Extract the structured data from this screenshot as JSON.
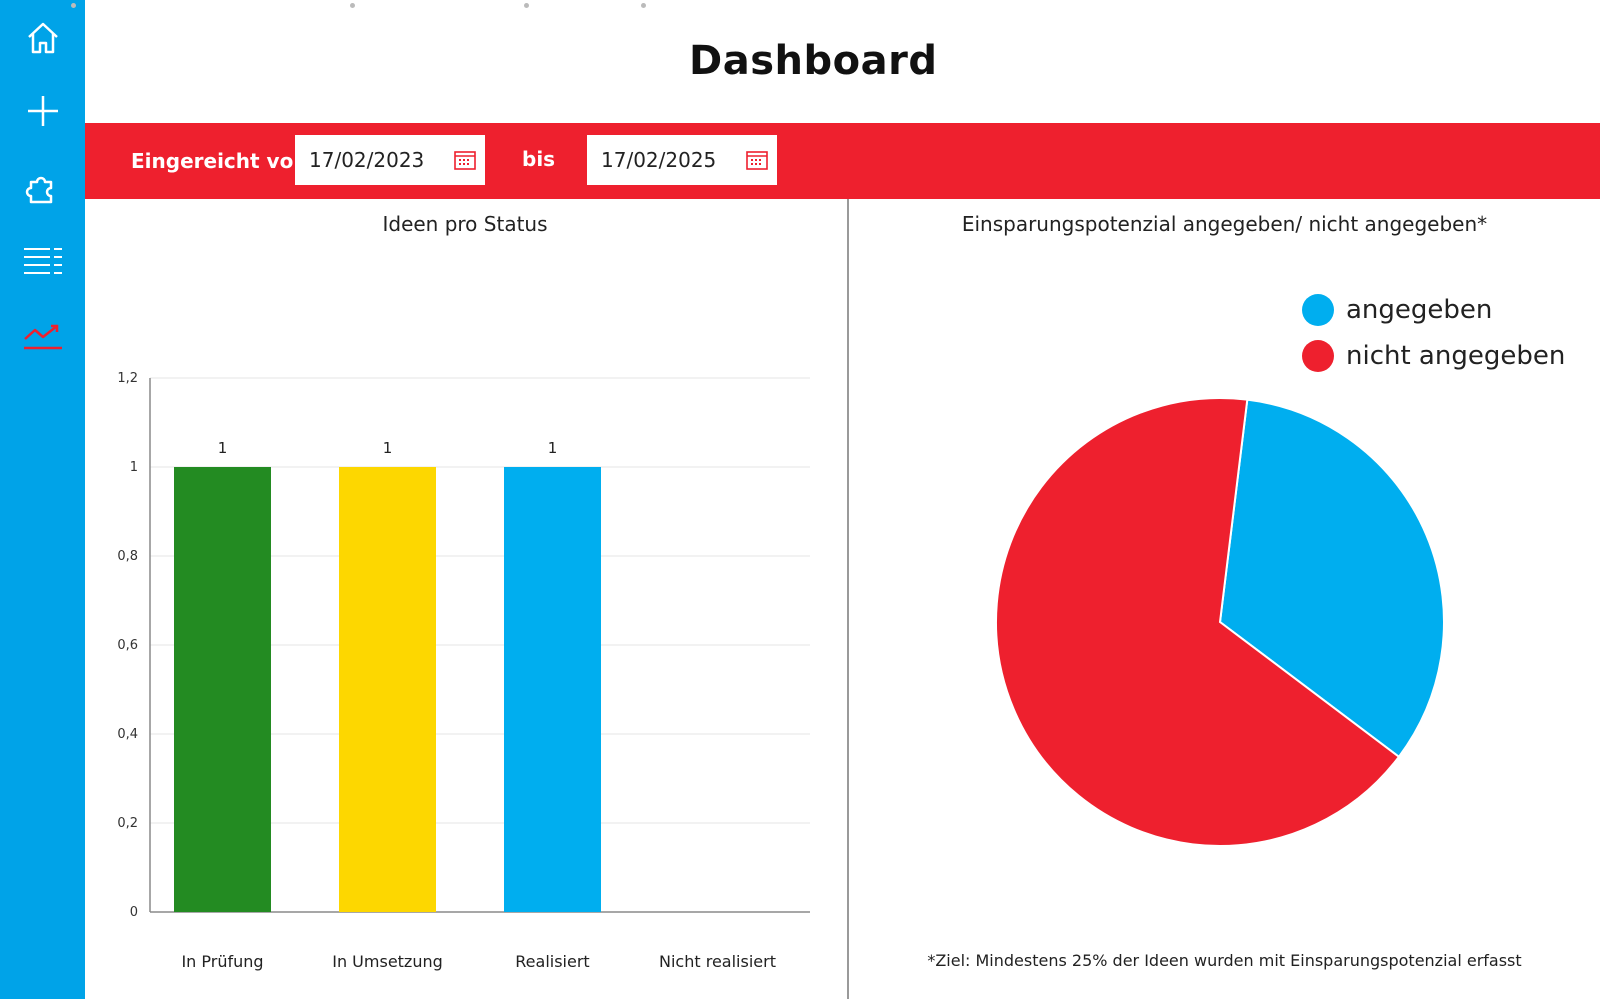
{
  "sidebar": {
    "items": [
      {
        "icon": "home-icon"
      },
      {
        "icon": "plus-icon"
      },
      {
        "icon": "puzzle-icon"
      },
      {
        "icon": "list-icon"
      },
      {
        "icon": "trend-chart-icon",
        "active": true
      }
    ],
    "active_icon_color": "#ee202e"
  },
  "header": {
    "title": "Dashboard"
  },
  "filters": {
    "from_label": "Eingereicht von",
    "from_value": "17/02/2023",
    "to_label": "bis",
    "to_value": "17/02/2025"
  },
  "colors": {
    "sidebar": "#00a3e8",
    "filter_bar": "#ee202e"
  },
  "left_panel": {
    "title": "Ideen pro Status"
  },
  "right_panel": {
    "title": "Einsparungspotenzial angegeben/ nicht angegeben*",
    "footnote": "*Ziel: Mindestens 25% der Ideen wurden mit Einsparungspotenzial erfasst"
  },
  "chart_data": [
    {
      "type": "bar",
      "title": "Ideen pro Status",
      "categories": [
        "In Prüfung",
        "In Umsetzung",
        "Realisiert",
        "Nicht realisiert"
      ],
      "values": [
        1,
        1,
        1,
        0
      ],
      "data_labels": [
        "1",
        "1",
        "1",
        ""
      ],
      "colors": [
        "#238b22",
        "#fdd700",
        "#00aeef",
        "#cccccc"
      ],
      "ylim": [
        0,
        1.2
      ],
      "yticks": [
        "0",
        "0,2",
        "0,4",
        "0,6",
        "0,8",
        "1",
        "1,2"
      ],
      "grid": true,
      "xlabel": "",
      "ylabel": ""
    },
    {
      "type": "pie",
      "title": "Einsparungspotenzial angegeben/ nicht angegeben*",
      "labels": [
        "angegeben",
        "nicht angegeben"
      ],
      "values": [
        1,
        2
      ],
      "colors": [
        "#00aeef",
        "#ee202e"
      ],
      "legend": "top-right"
    }
  ]
}
